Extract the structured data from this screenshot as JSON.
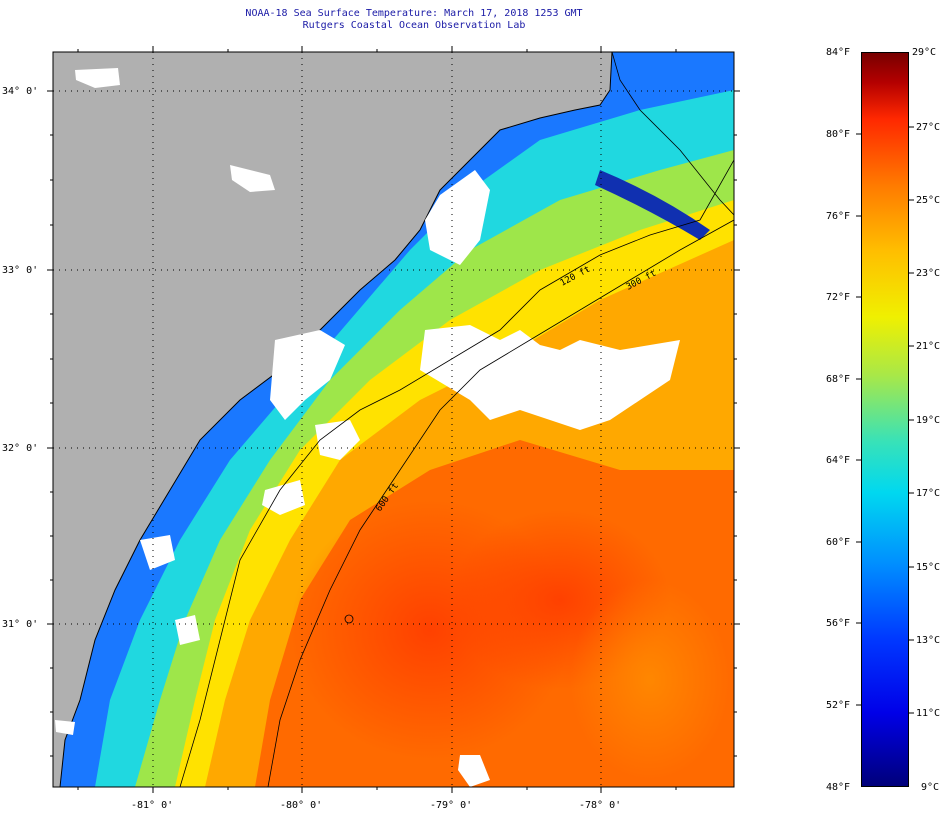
{
  "header": {
    "title_line1": "NOAA-18 Sea Surface Temperature:  March 17, 2018 1253 GMT",
    "title_line2": "Rutgers Coastal Ocean Observation Lab"
  },
  "map": {
    "lat_labels": [
      "34° 0'",
      "33° 0'",
      "32° 0'",
      "31° 0'"
    ],
    "lon_labels": [
      "-81° 0'",
      "-80° 0'",
      "-79° 0'",
      "-78° 0'"
    ],
    "isobath_labels": [
      "120 ft",
      "300 ft",
      "600 ft"
    ],
    "colors": {
      "land": "#b0b0b0",
      "cloud": "#ffffff",
      "coast": "#000000",
      "grid": "#000000"
    }
  },
  "colorbar": {
    "fahrenheit_labels": [
      "84°F",
      "80°F",
      "76°F",
      "72°F",
      "68°F",
      "64°F",
      "60°F",
      "56°F",
      "52°F",
      "48°F"
    ],
    "celsius_labels": [
      "29°C",
      "27°C",
      "25°C",
      "23°C",
      "21°C",
      "19°C",
      "17°C",
      "15°C",
      "13°C",
      "11°C",
      "9°C"
    ]
  }
}
